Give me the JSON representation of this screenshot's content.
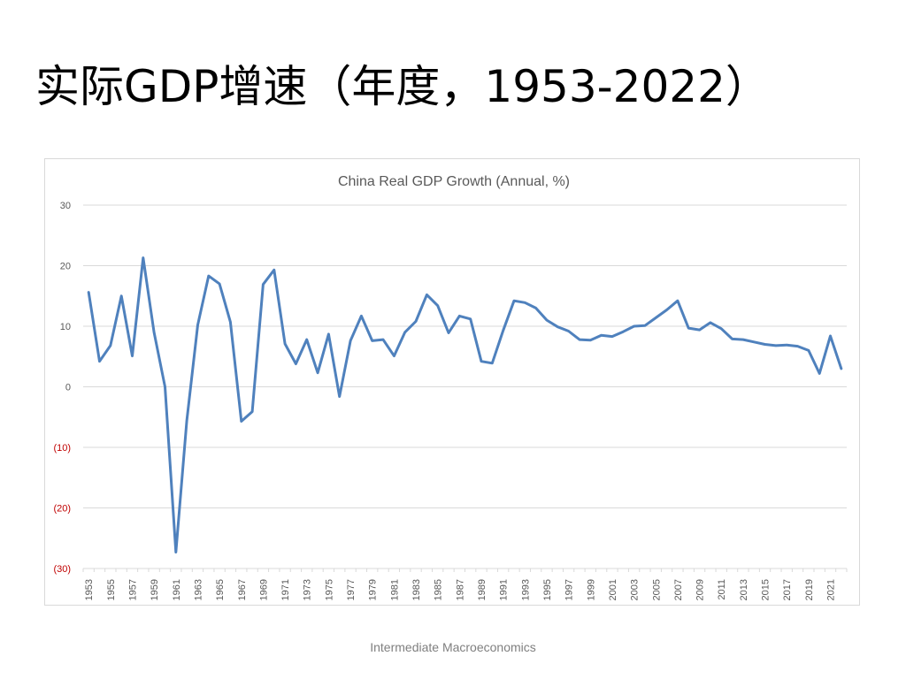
{
  "slide": {
    "title": "实际GDP增速（年度，1953-2022）",
    "footer": "Intermediate Macroeconomics"
  },
  "colors": {
    "line": "#4f81bd",
    "negative_tick": "#c00000",
    "tick": "#595959",
    "grid": "#d9d9d9"
  },
  "chart_data": {
    "type": "line",
    "title": "China Real GDP Growth (Annual, %)",
    "xlabel": "",
    "ylabel": "",
    "ylim": [
      -30,
      30
    ],
    "yticks": [
      30,
      20,
      10,
      0,
      -10,
      -20,
      -30
    ],
    "ytick_labels": [
      "30",
      "20",
      "10",
      "0",
      "(10)",
      "(20)",
      "(30)"
    ],
    "grid": true,
    "legend": "none",
    "x": [
      1953,
      1954,
      1955,
      1956,
      1957,
      1958,
      1959,
      1960,
      1961,
      1962,
      1963,
      1964,
      1965,
      1966,
      1967,
      1968,
      1969,
      1970,
      1971,
      1972,
      1973,
      1974,
      1975,
      1976,
      1977,
      1978,
      1979,
      1980,
      1981,
      1982,
      1983,
      1984,
      1985,
      1986,
      1987,
      1988,
      1989,
      1990,
      1991,
      1992,
      1993,
      1994,
      1995,
      1996,
      1997,
      1998,
      1999,
      2000,
      2001,
      2002,
      2003,
      2004,
      2005,
      2006,
      2007,
      2008,
      2009,
      2010,
      2011,
      2012,
      2013,
      2014,
      2015,
      2016,
      2017,
      2018,
      2019,
      2020,
      2021,
      2022
    ],
    "xtick_labels": [
      "1953",
      "1955",
      "1957",
      "1959",
      "1961",
      "1963",
      "1965",
      "1967",
      "1969",
      "1971",
      "1973",
      "1975",
      "1977",
      "1979",
      "1981",
      "1983",
      "1985",
      "1987",
      "1989",
      "1991",
      "1993",
      "1995",
      "1997",
      "1999",
      "2001",
      "2003",
      "2005",
      "2007",
      "2009",
      "2011",
      "2013",
      "2015",
      "2017",
      "2019",
      "2021"
    ],
    "series": [
      {
        "values": [
          15.6,
          4.2,
          6.8,
          15.0,
          5.1,
          21.3,
          9.0,
          0.0,
          -27.3,
          -5.6,
          10.2,
          18.3,
          17.0,
          10.7,
          -5.7,
          -4.1,
          16.9,
          19.3,
          7.1,
          3.8,
          7.8,
          2.3,
          8.7,
          -1.6,
          7.6,
          11.7,
          7.6,
          7.8,
          5.1,
          9.0,
          10.8,
          15.2,
          13.4,
          8.9,
          11.7,
          11.2,
          4.2,
          3.9,
          9.3,
          14.2,
          13.9,
          13.0,
          11.0,
          9.9,
          9.2,
          7.8,
          7.7,
          8.5,
          8.3,
          9.1,
          10.0,
          10.1,
          11.4,
          12.7,
          14.2,
          9.7,
          9.4,
          10.6,
          9.6,
          7.9,
          7.8,
          7.4,
          7.0,
          6.8,
          6.9,
          6.7,
          6.0,
          2.2,
          8.4,
          3.0
        ]
      }
    ]
  }
}
